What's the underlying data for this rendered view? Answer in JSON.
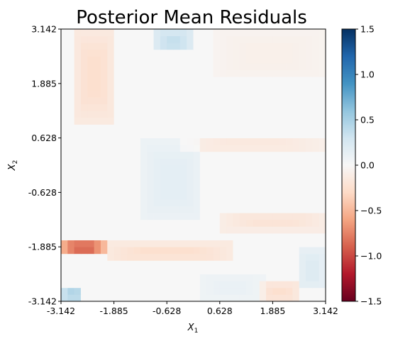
{
  "chart_data": {
    "type": "heatmap",
    "title": "Posterior Mean Residuals",
    "xlabel": "X",
    "xlabel_sub": "1",
    "ylabel": "X",
    "ylabel_sub": "2",
    "xlim": [
      -3.142,
      3.142
    ],
    "ylim": [
      -3.142,
      3.142
    ],
    "x_ticks": [
      "-3.142",
      "-1.885",
      "-0.628",
      "0.628",
      "1.885",
      "3.142"
    ],
    "y_ticks": [
      "-3.142",
      "-1.885",
      "-0.628",
      "0.628",
      "1.885",
      "3.142"
    ],
    "colormap": "RdBu",
    "color_range": [
      -1.5,
      1.5
    ],
    "colorbar_ticks": [
      "1.5",
      "1.0",
      "0.5",
      "0.0",
      "−0.5",
      "−1.0",
      "−1.5"
    ],
    "grid": false,
    "grid_size": [
      40,
      40
    ],
    "features": [
      {
        "x": [
          -2.8,
          -1.9
        ],
        "y": [
          1.0,
          3.142
        ],
        "value": -0.25
      },
      {
        "x": [
          -0.9,
          -0.05
        ],
        "y": [
          2.6,
          3.142
        ],
        "value": 0.35
      },
      {
        "x": [
          -1.2,
          0.2
        ],
        "y": [
          -1.3,
          0.6
        ],
        "value": 0.15
      },
      {
        "x": [
          -3.142,
          -2.1
        ],
        "y": [
          -2.1,
          -1.7
        ],
        "value": -0.85
      },
      {
        "x": [
          -2.1,
          0.9
        ],
        "y": [
          -2.2,
          -1.8
        ],
        "value": -0.25
      },
      {
        "x": [
          0.7,
          3.142
        ],
        "y": [
          -1.5,
          -1.1
        ],
        "value": -0.2
      },
      {
        "x": [
          -0.3,
          3.142
        ],
        "y": [
          0.3,
          0.7
        ],
        "value": -0.15
      },
      {
        "x": [
          -3.142,
          -2.6
        ],
        "y": [
          -3.142,
          -2.8
        ],
        "value": 0.45
      },
      {
        "x": [
          1.6,
          2.5
        ],
        "y": [
          -3.142,
          -2.7
        ],
        "value": -0.25
      },
      {
        "x": [
          2.5,
          3.142
        ],
        "y": [
          -2.9,
          -1.9
        ],
        "value": 0.2
      },
      {
        "x": [
          0.1,
          1.7
        ],
        "y": [
          -3.142,
          -2.5
        ],
        "value": 0.1
      },
      {
        "x": [
          0.5,
          3.142
        ],
        "y": [
          2.0,
          3.142
        ],
        "value": -0.08
      }
    ]
  }
}
